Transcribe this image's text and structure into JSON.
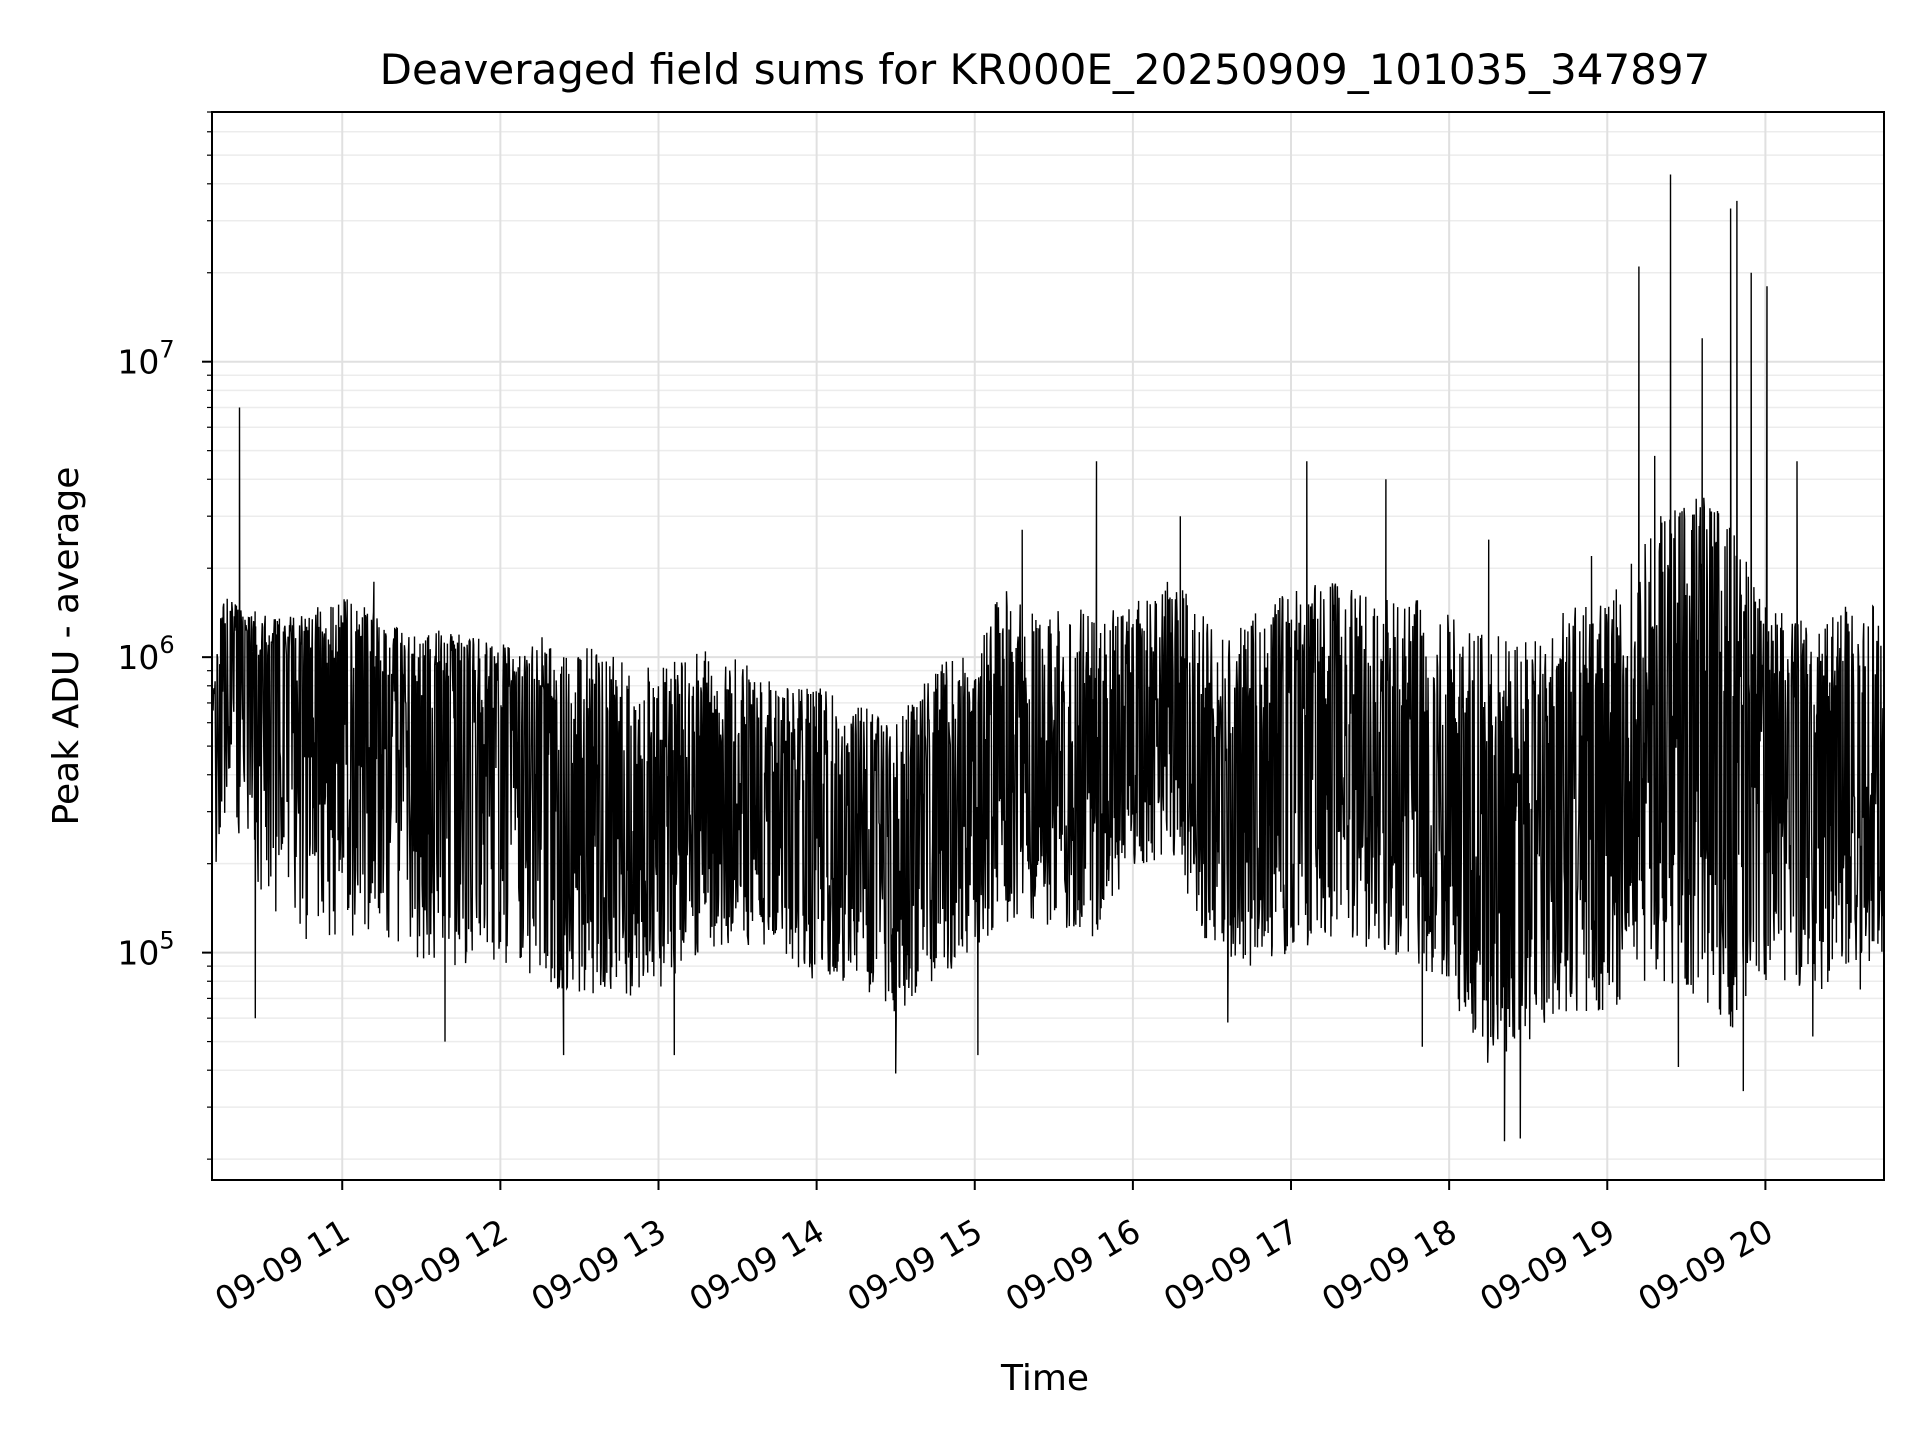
{
  "chart_data": {
    "type": "line",
    "title": "Deaveraged field sums for KR000E_20250909_101035_347897",
    "xlabel": "Time",
    "ylabel": "Peak ADU - average",
    "yscale": "log",
    "ylim": [
      17000,
      70000000
    ],
    "xlim": [
      "2025-09-09 10:10:35",
      "2025-09-09 20:45:00"
    ],
    "grid": true,
    "line_color": "#000000",
    "x_ticks": [
      "09-09 11",
      "09-09 12",
      "09-09 13",
      "09-09 14",
      "09-09 15",
      "09-09 16",
      "09-09 17",
      "09-09 18",
      "09-09 19",
      "09-09 20"
    ],
    "y_ticks": [
      {
        "base": "10",
        "exp": "5"
      },
      {
        "base": "10",
        "exp": "6"
      },
      {
        "base": "10",
        "exp": "7"
      }
    ],
    "envelope_hours": [
      10.18,
      10.25,
      10.35,
      10.5,
      10.75,
      11.0,
      11.25,
      11.5,
      11.75,
      12.0,
      12.25,
      12.5,
      12.75,
      13.0,
      13.25,
      13.5,
      13.75,
      14.0,
      14.25,
      14.5,
      14.75,
      15.0,
      15.25,
      15.5,
      15.75,
      16.0,
      16.25,
      16.5,
      16.75,
      17.0,
      17.25,
      17.5,
      17.75,
      18.0,
      18.25,
      18.5,
      18.75,
      19.0,
      19.25,
      19.5,
      19.75,
      20.0,
      20.25,
      20.5,
      20.75
    ],
    "envelope_median": [
      500000,
      1000000,
      1200000,
      900000,
      800000,
      900000,
      700000,
      600000,
      600000,
      550000,
      450000,
      350000,
      300000,
      350000,
      450000,
      400000,
      350000,
      300000,
      250000,
      200000,
      300000,
      400000,
      500000,
      450000,
      400000,
      600000,
      700000,
      350000,
      400000,
      450000,
      500000,
      450000,
      400000,
      300000,
      200000,
      250000,
      300000,
      300000,
      500000,
      600000,
      500000,
      700000,
      450000,
      500000,
      600000
    ],
    "envelope_high": [
      700000,
      1600000,
      1500000,
      1400000,
      1400000,
      1600000,
      1400000,
      1300000,
      1200000,
      1100000,
      1200000,
      1100000,
      1000000,
      900000,
      1100000,
      1000000,
      800000,
      800000,
      700000,
      600000,
      900000,
      1200000,
      1800000,
      1600000,
      1400000,
      1500000,
      1900000,
      1300000,
      1400000,
      1700000,
      1800000,
      1600000,
      1600000,
      1400000,
      1200000,
      1200000,
      1500000,
      1500000,
      2500000,
      4000000,
      3000000,
      1500000,
      1400000,
      1500000,
      1500000
    ],
    "envelope_low": [
      150000,
      300000,
      250000,
      150000,
      110000,
      110000,
      110000,
      90000,
      90000,
      90000,
      80000,
      70000,
      70000,
      70000,
      100000,
      110000,
      90000,
      80000,
      80000,
      60000,
      80000,
      100000,
      130000,
      120000,
      110000,
      180000,
      200000,
      90000,
      90000,
      100000,
      110000,
      100000,
      90000,
      70000,
      40000,
      50000,
      60000,
      60000,
      80000,
      70000,
      50000,
      80000,
      70000,
      80000,
      100000
    ],
    "spikes": [
      {
        "t": 10.35,
        "v": 7000000
      },
      {
        "t": 10.45,
        "v": 60000
      },
      {
        "t": 11.2,
        "v": 1800000
      },
      {
        "t": 11.65,
        "v": 50000
      },
      {
        "t": 12.4,
        "v": 45000
      },
      {
        "t": 13.1,
        "v": 45000
      },
      {
        "t": 14.5,
        "v": 39000
      },
      {
        "t": 15.02,
        "v": 45000
      },
      {
        "t": 15.3,
        "v": 2700000
      },
      {
        "t": 15.77,
        "v": 4600000
      },
      {
        "t": 16.3,
        "v": 3000000
      },
      {
        "t": 16.6,
        "v": 58000
      },
      {
        "t": 17.1,
        "v": 4600000
      },
      {
        "t": 17.6,
        "v": 4000000
      },
      {
        "t": 17.83,
        "v": 48000
      },
      {
        "t": 18.25,
        "v": 2500000
      },
      {
        "t": 18.35,
        "v": 23000
      },
      {
        "t": 18.45,
        "v": 23500
      },
      {
        "t": 18.9,
        "v": 2200000
      },
      {
        "t": 19.2,
        "v": 21000000
      },
      {
        "t": 19.3,
        "v": 4800000
      },
      {
        "t": 19.4,
        "v": 43000000
      },
      {
        "t": 19.45,
        "v": 41000
      },
      {
        "t": 19.6,
        "v": 12000000
      },
      {
        "t": 19.78,
        "v": 33000000
      },
      {
        "t": 19.82,
        "v": 35000000
      },
      {
        "t": 19.86,
        "v": 34000
      },
      {
        "t": 19.91,
        "v": 20000000
      },
      {
        "t": 20.01,
        "v": 18000000
      },
      {
        "t": 20.2,
        "v": 4600000
      },
      {
        "t": 20.3,
        "v": 52000
      },
      {
        "t": 20.6,
        "v": 75000
      }
    ]
  }
}
